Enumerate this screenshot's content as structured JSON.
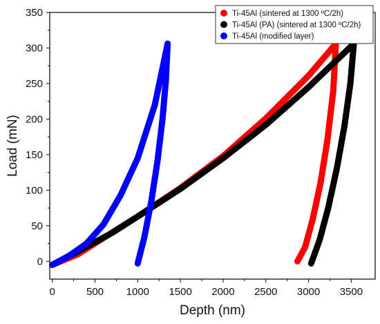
{
  "chart_data": {
    "type": "line",
    "xlabel": "Depth (nm)",
    "ylabel": "Load (mN)",
    "xlim": [
      -30,
      3780
    ],
    "ylim": [
      -25,
      350
    ],
    "xticks": [
      0,
      500,
      1000,
      1500,
      2000,
      2500,
      3000,
      3500
    ],
    "yticks": [
      0,
      50,
      100,
      150,
      200,
      250,
      300,
      350
    ],
    "grid": false,
    "legend_position": "top-right",
    "series": [
      {
        "name": "Ti-45Al (sintered at 1300 ºC/2h)",
        "color": "#ff0000",
        "loading": [
          [
            0,
            -5
          ],
          [
            300,
            10
          ],
          [
            600,
            33
          ],
          [
            1000,
            63
          ],
          [
            1500,
            103
          ],
          [
            2000,
            148
          ],
          [
            2500,
            201
          ],
          [
            3000,
            261
          ],
          [
            3320,
            306
          ]
        ],
        "unloading": [
          [
            3320,
            306
          ],
          [
            3290,
            240
          ],
          [
            3220,
            170
          ],
          [
            3140,
            110
          ],
          [
            3050,
            60
          ],
          [
            2960,
            20
          ],
          [
            2870,
            0
          ]
        ]
      },
      {
        "name": "Ti-45Al (PA) (sintered at 1300 ºC/2h)",
        "color": "#000000",
        "loading": [
          [
            0,
            -5
          ],
          [
            300,
            14
          ],
          [
            700,
            40
          ],
          [
            1000,
            63
          ],
          [
            1500,
            102
          ],
          [
            2000,
            145
          ],
          [
            2500,
            192
          ],
          [
            3000,
            245
          ],
          [
            3530,
            306
          ]
        ],
        "unloading": [
          [
            3530,
            306
          ],
          [
            3490,
            250
          ],
          [
            3420,
            190
          ],
          [
            3330,
            130
          ],
          [
            3230,
            75
          ],
          [
            3130,
            30
          ],
          [
            3030,
            -3
          ]
        ]
      },
      {
        "name": "Ti-45Al (modified layer)",
        "color": "#0000ff",
        "loading": [
          [
            0,
            -5
          ],
          [
            200,
            8
          ],
          [
            400,
            25
          ],
          [
            600,
            52
          ],
          [
            800,
            93
          ],
          [
            1000,
            145
          ],
          [
            1200,
            220
          ],
          [
            1350,
            306
          ]
        ],
        "unloading": [
          [
            1350,
            306
          ],
          [
            1330,
            255
          ],
          [
            1290,
            200
          ],
          [
            1230,
            140
          ],
          [
            1160,
            85
          ],
          [
            1080,
            35
          ],
          [
            1000,
            -3
          ]
        ]
      }
    ]
  }
}
